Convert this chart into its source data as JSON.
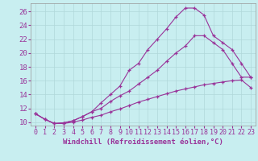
{
  "xlabel": "Windchill (Refroidissement éolien,°C)",
  "bg_color": "#c8eef0",
  "grid_color": "#b0d8da",
  "line_color": "#993399",
  "xlim": [
    -0.5,
    23.5
  ],
  "ylim": [
    9.5,
    27.2
  ],
  "xticks": [
    0,
    1,
    2,
    3,
    4,
    5,
    6,
    7,
    8,
    9,
    10,
    11,
    12,
    13,
    14,
    15,
    16,
    17,
    18,
    19,
    20,
    21,
    22,
    23
  ],
  "yticks": [
    10,
    12,
    14,
    16,
    18,
    20,
    22,
    24,
    26
  ],
  "curve1_x": [
    0,
    1,
    2,
    3,
    4,
    5,
    6,
    7,
    8,
    9,
    10,
    11,
    12,
    13,
    14,
    15,
    16,
    17,
    18,
    19,
    20,
    21,
    22,
    23
  ],
  "curve1_y": [
    11.2,
    10.4,
    9.8,
    9.8,
    10.0,
    10.3,
    10.7,
    11.0,
    11.5,
    11.9,
    12.4,
    12.9,
    13.3,
    13.7,
    14.1,
    14.5,
    14.8,
    15.1,
    15.4,
    15.6,
    15.8,
    16.0,
    16.1,
    15.0
  ],
  "curve2_x": [
    0,
    1,
    2,
    3,
    4,
    5,
    6,
    7,
    8,
    9,
    10,
    11,
    12,
    13,
    14,
    15,
    16,
    17,
    18,
    19,
    20,
    21,
    22,
    23
  ],
  "curve2_y": [
    11.2,
    10.4,
    9.8,
    9.9,
    10.2,
    10.8,
    11.5,
    12.0,
    13.0,
    13.8,
    14.5,
    15.5,
    16.5,
    17.5,
    18.8,
    20.0,
    21.0,
    22.5,
    22.5,
    21.5,
    20.5,
    18.5,
    16.5,
    16.5
  ],
  "curve3_x": [
    0,
    1,
    2,
    3,
    4,
    5,
    6,
    7,
    8,
    9,
    10,
    11,
    12,
    13,
    14,
    15,
    16,
    17,
    18,
    19,
    20,
    21,
    22,
    23
  ],
  "curve3_y": [
    11.2,
    10.4,
    9.8,
    9.9,
    10.2,
    10.8,
    11.5,
    12.8,
    14.0,
    15.2,
    17.5,
    18.5,
    20.5,
    22.0,
    23.5,
    25.2,
    26.5,
    26.5,
    25.5,
    22.5,
    21.5,
    20.5,
    18.5,
    16.5
  ],
  "xlabel_fontsize": 6.5,
  "tick_fontsize": 6.0
}
